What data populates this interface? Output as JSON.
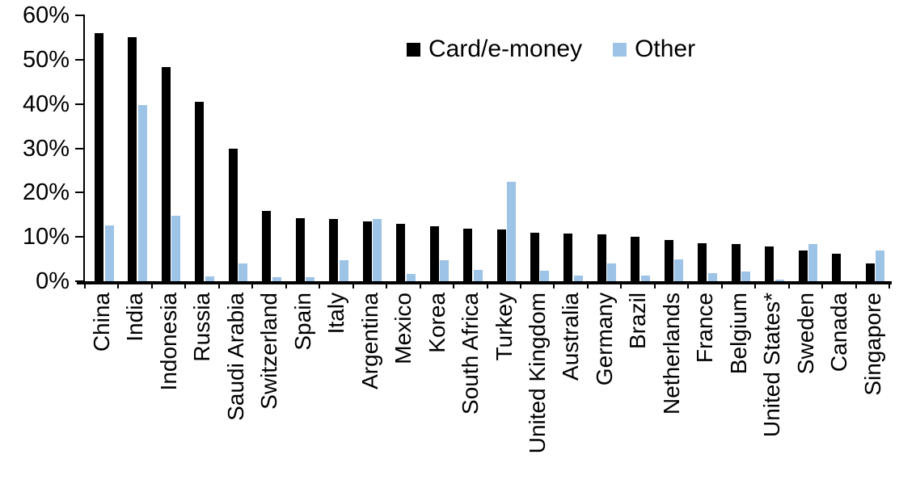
{
  "chart_data": {
    "type": "bar",
    "title": "",
    "xlabel": "",
    "ylabel": "",
    "categories": [
      "China",
      "India",
      "Indonesia",
      "Russia",
      "Saudi Arabia",
      "Switzerland",
      "Spain",
      "Italy",
      "Argentina",
      "Mexico",
      "Korea",
      "South Africa",
      "Turkey",
      "United Kingdom",
      "Australia",
      "Germany",
      "Brazil",
      "Netherlands",
      "France",
      "Belgium",
      "United States*",
      "Sweden",
      "Canada",
      "Singapore"
    ],
    "series": [
      {
        "name": "Card/e-money",
        "color": "#000000",
        "values": [
          56,
          55,
          48.4,
          40.5,
          30,
          15.8,
          14.3,
          14.1,
          13.5,
          13,
          12.4,
          11.9,
          11.7,
          11,
          10.8,
          10.6,
          10,
          9.3,
          8.6,
          8.3,
          7.9,
          6.9,
          6.2,
          4.1
        ]
      },
      {
        "name": "Other",
        "color": "#9DC3E6",
        "values": [
          12.5,
          39.8,
          14.7,
          1.1,
          4,
          0.9,
          1,
          4.7,
          14,
          1.6,
          4.7,
          2.6,
          22.5,
          2.4,
          1.2,
          4,
          1.3,
          5,
          1.8,
          2.2,
          0.3,
          8.3,
          0,
          6.9
        ]
      }
    ],
    "ylim": [
      0,
      60
    ],
    "ytick_labels": [
      "0%",
      "10%",
      "20%",
      "30%",
      "40%",
      "50%",
      "60%"
    ],
    "legend_position": "top-center",
    "grid": false,
    "axis_color": "#000000"
  }
}
